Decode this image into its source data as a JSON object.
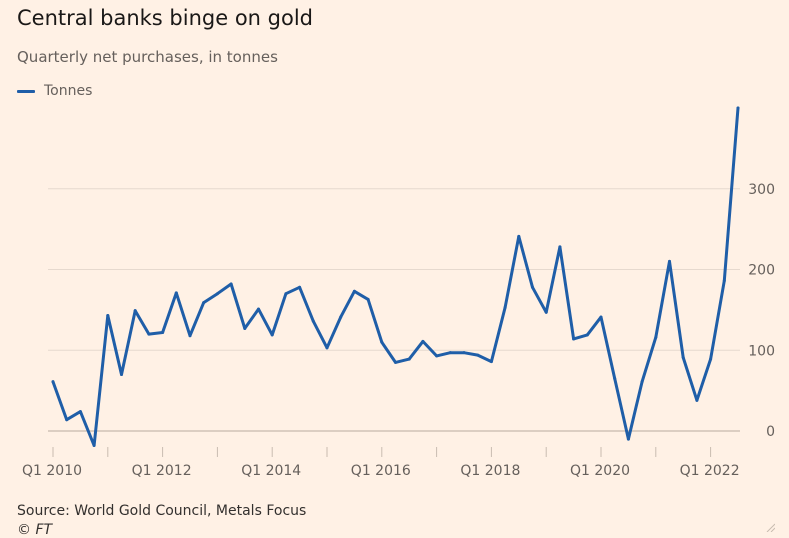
{
  "chart_data": {
    "type": "line",
    "title": "Central banks binge on gold",
    "subtitle": "Quarterly net purchases, in tonnes",
    "xlabel": "",
    "ylabel": "",
    "legend": "top-left",
    "grid": true,
    "ylim": [
      -20,
      400
    ],
    "yticks": [
      0,
      100,
      200,
      300
    ],
    "xtick_labels": [
      "Q1 2010",
      "Q1 2012",
      "Q1 2014",
      "Q1 2016",
      "Q1 2018",
      "Q1 2020",
      "Q1 2022"
    ],
    "xtick_indices": [
      0,
      8,
      16,
      24,
      32,
      40,
      48
    ],
    "series": [
      {
        "name": "Tonnes",
        "color": "#1f5ea8",
        "x": [
          "Q1 2010",
          "Q2 2010",
          "Q3 2010",
          "Q4 2010",
          "Q1 2011",
          "Q2 2011",
          "Q3 2011",
          "Q4 2011",
          "Q1 2012",
          "Q2 2012",
          "Q3 2012",
          "Q4 2012",
          "Q1 2013",
          "Q2 2013",
          "Q3 2013",
          "Q4 2013",
          "Q1 2014",
          "Q2 2014",
          "Q3 2014",
          "Q4 2014",
          "Q1 2015",
          "Q2 2015",
          "Q3 2015",
          "Q4 2015",
          "Q1 2016",
          "Q2 2016",
          "Q3 2016",
          "Q4 2016",
          "Q1 2017",
          "Q2 2017",
          "Q3 2017",
          "Q4 2017",
          "Q1 2018",
          "Q2 2018",
          "Q3 2018",
          "Q4 2018",
          "Q1 2019",
          "Q2 2019",
          "Q3 2019",
          "Q4 2019",
          "Q1 2020",
          "Q2 2020",
          "Q3 2020",
          "Q4 2020",
          "Q1 2021",
          "Q2 2021",
          "Q3 2021",
          "Q4 2021",
          "Q1 2022",
          "Q2 2022",
          "Q3 2022"
        ],
        "values": [
          61,
          14,
          24,
          -18,
          143,
          70,
          149,
          120,
          122,
          171,
          118,
          159,
          170,
          182,
          127,
          151,
          119,
          170,
          178,
          136,
          103,
          141,
          173,
          163,
          110,
          85,
          89,
          111,
          93,
          97,
          97,
          94,
          86,
          153,
          241,
          178,
          147,
          228,
          114,
          119,
          141,
          65,
          -10,
          61,
          116,
          210,
          91,
          38,
          89,
          186,
          400
        ]
      }
    ]
  },
  "source": "Source: World Gold Council, Metals Focus",
  "copyright": "© FT"
}
